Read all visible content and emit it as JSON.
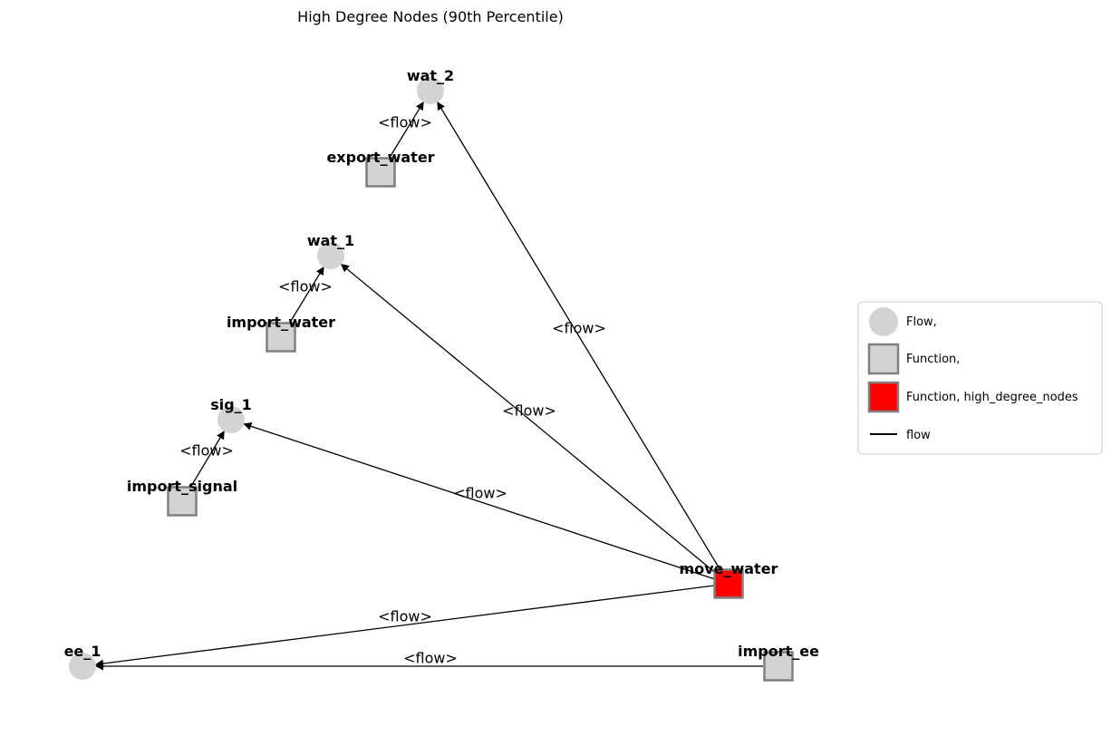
{
  "title": "High Degree Nodes (90th Percentile)",
  "colors": {
    "flow_fill": "#d3d3d3",
    "function_fill": "#d3d3d3",
    "function_edge": "#808080",
    "high_degree_fill": "#ff0000",
    "edge": "#000000"
  },
  "nodes": [
    {
      "id": "wat_2",
      "label": "wat_2",
      "kind": "flow"
    },
    {
      "id": "export_water",
      "label": "export_water",
      "kind": "function"
    },
    {
      "id": "wat_1",
      "label": "wat_1",
      "kind": "flow"
    },
    {
      "id": "import_water",
      "label": "import_water",
      "kind": "function"
    },
    {
      "id": "sig_1",
      "label": "sig_1",
      "kind": "flow"
    },
    {
      "id": "import_signal",
      "label": "import_signal",
      "kind": "function"
    },
    {
      "id": "move_water",
      "label": "move_water",
      "kind": "function_high"
    },
    {
      "id": "ee_1",
      "label": "ee_1",
      "kind": "flow"
    },
    {
      "id": "import_ee",
      "label": "import_ee",
      "kind": "function"
    }
  ],
  "edges": [
    {
      "id": "e1",
      "source": "export_water",
      "target": "wat_2",
      "label": "<flow>"
    },
    {
      "id": "e2",
      "source": "import_water",
      "target": "wat_1",
      "label": "<flow>"
    },
    {
      "id": "e3",
      "source": "import_signal",
      "target": "sig_1",
      "label": "<flow>"
    },
    {
      "id": "e4",
      "source": "move_water",
      "target": "wat_2",
      "label": "<flow>"
    },
    {
      "id": "e5",
      "source": "move_water",
      "target": "wat_1",
      "label": "<flow>"
    },
    {
      "id": "e6",
      "source": "move_water",
      "target": "sig_1",
      "label": "<flow>"
    },
    {
      "id": "e7",
      "source": "move_water",
      "target": "ee_1",
      "label": "<flow>"
    },
    {
      "id": "e8",
      "source": "import_ee",
      "target": "ee_1",
      "label": "<flow>"
    }
  ],
  "legend": {
    "items": [
      {
        "label": "Flow,",
        "marker": "circle"
      },
      {
        "label": "Function,",
        "marker": "square"
      },
      {
        "label": "Function, high_degree_nodes",
        "marker": "square-red"
      },
      {
        "label": "flow",
        "marker": "line"
      }
    ]
  }
}
